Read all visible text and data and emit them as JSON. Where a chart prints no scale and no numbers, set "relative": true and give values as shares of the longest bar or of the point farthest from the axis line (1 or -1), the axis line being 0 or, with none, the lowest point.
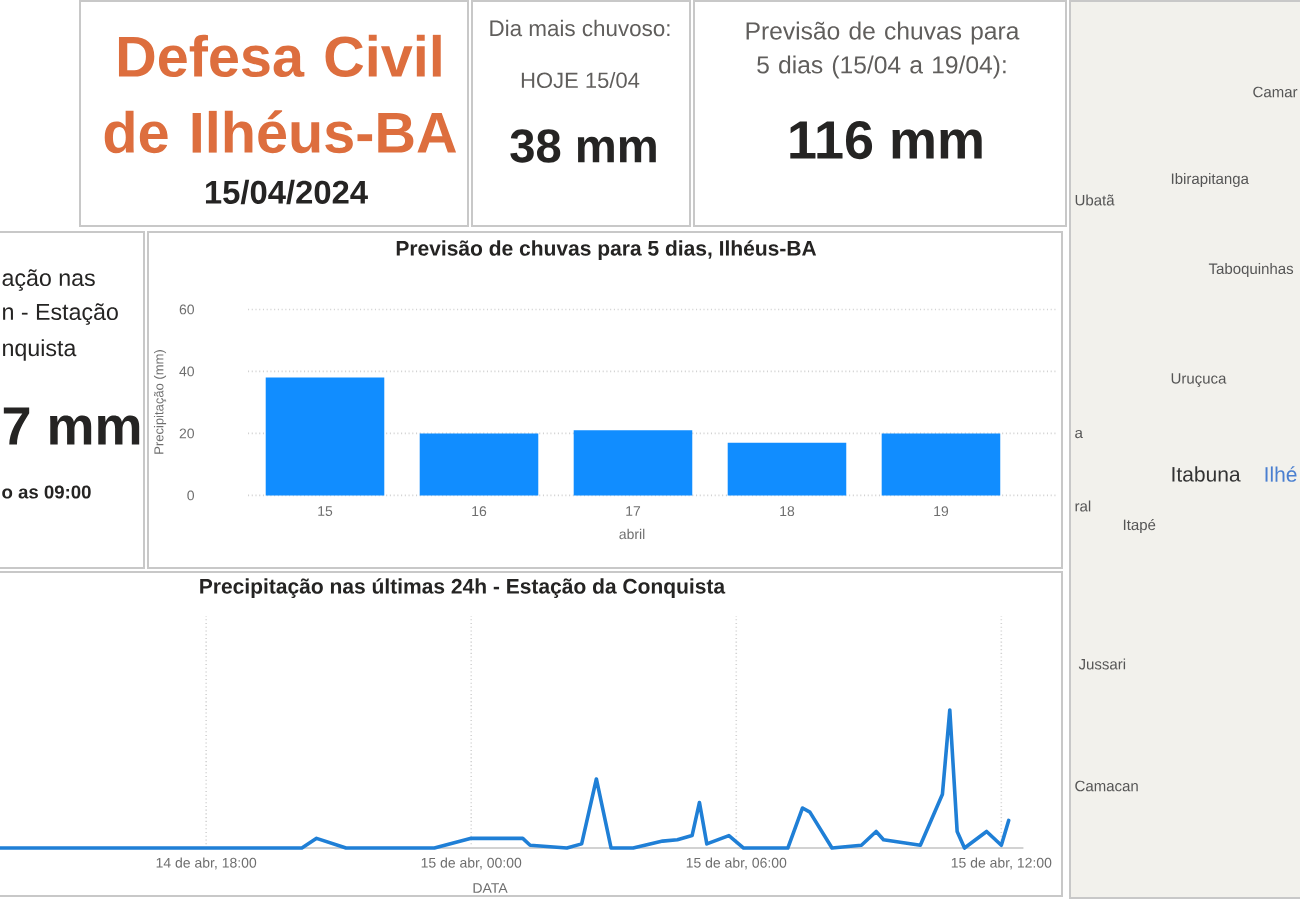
{
  "chart_data": [
    {
      "type": "other",
      "title": "Defesa Civil de Ilhéus-BA",
      "subtitle": "15/04/2024"
    },
    {
      "type": "other",
      "title": "Dia mais chuvoso:",
      "subtitle": "HOJE 15/04",
      "annotations": [
        "38 mm"
      ]
    },
    {
      "type": "other",
      "title": "Previsão de chuvas para 5 dias (15/04 a 19/04):",
      "annotations": [
        "116 mm"
      ]
    },
    {
      "type": "other",
      "annotations": [
        "ação nas",
        "n - Estação",
        "nquista",
        "7 mm",
        "o as 09:00"
      ]
    },
    {
      "type": "bar",
      "title": "Previsão de chuvas para 5 dias, Ilhéus-BA",
      "xlabel": "abril",
      "ylabel": "Precipitação (mm)",
      "categories": [
        "15",
        "16",
        "17",
        "18",
        "19"
      ],
      "values": [
        38,
        20,
        21,
        17,
        20
      ],
      "color": "#118dff",
      "ylim": [
        0,
        60
      ],
      "yticks": [
        0,
        20,
        40,
        60
      ],
      "grid": "y"
    },
    {
      "type": "line",
      "title": "Precipitação nas últimas 24h - Estação da Conquista",
      "xlabel": "DATA",
      "relative": true,
      "color": "#1f7fd6",
      "line_style": "solid",
      "grid": "x",
      "xlim": [
        "2024-04-14T13:20",
        "2024-04-15T12:30"
      ],
      "xticks": [
        {
          "value": "2024-04-14T18:00",
          "label": "14 de abr, 18:00"
        },
        {
          "value": "2024-04-15T00:00",
          "label": "15 de abr, 00:00"
        },
        {
          "value": "2024-04-15T06:00",
          "label": "15 de abr, 06:00"
        },
        {
          "value": "2024-04-15T12:00",
          "label": "15 de abr, 12:00"
        }
      ],
      "x": [
        "2024-04-14T13:20",
        "2024-04-14T20:10",
        "2024-04-14T20:30",
        "2024-04-14T21:10",
        "2024-04-14T23:10",
        "2024-04-15T00:00",
        "2024-04-15T01:10",
        "2024-04-15T01:20",
        "2024-04-15T02:10",
        "2024-04-15T02:30",
        "2024-04-15T02:50",
        "2024-04-15T03:10",
        "2024-04-15T03:40",
        "2024-04-15T04:20",
        "2024-04-15T04:40",
        "2024-04-15T05:00",
        "2024-04-15T05:10",
        "2024-04-15T05:20",
        "2024-04-15T05:50",
        "2024-04-15T06:10",
        "2024-04-15T07:10",
        "2024-04-15T07:30",
        "2024-04-15T07:40",
        "2024-04-15T08:10",
        "2024-04-15T08:50",
        "2024-04-15T09:10",
        "2024-04-15T09:20",
        "2024-04-15T10:10",
        "2024-04-15T10:40",
        "2024-04-15T10:50",
        "2024-04-15T11:00",
        "2024-04-15T11:10",
        "2024-04-15T11:40",
        "2024-04-15T12:00",
        "2024-04-15T12:10"
      ],
      "values": [
        0,
        0,
        0.07,
        0,
        0,
        0.07,
        0.07,
        0.02,
        0,
        0.03,
        0.5,
        0,
        0,
        0.05,
        0.06,
        0.09,
        0.33,
        0.03,
        0.09,
        0,
        0,
        0.29,
        0.26,
        0,
        0.02,
        0.12,
        0.06,
        0.02,
        0.39,
        1,
        0.12,
        0,
        0.12,
        0.02,
        0.2
      ]
    },
    {
      "type": "other",
      "annotations": [
        "Camar",
        "Ibirapitanga",
        "Ubatã",
        "Taboquinhas",
        "Uruçuca",
        "Itabuna",
        "Ilhé",
        "a",
        "ral",
        "Itapé",
        "Jussari",
        "Camacan"
      ]
    }
  ]
}
